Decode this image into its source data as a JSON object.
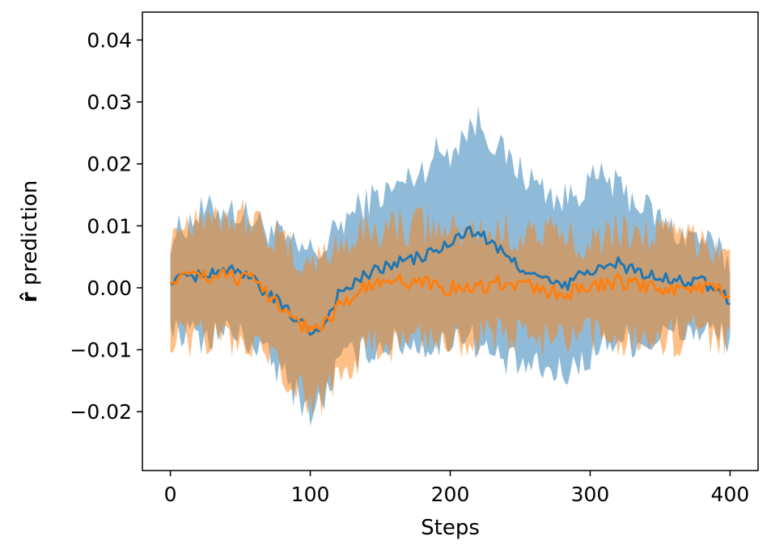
{
  "chart_data": {
    "type": "line",
    "title": "",
    "xlabel": "Steps",
    "ylabel_symbol": "r̂",
    "ylabel_text": " prediction",
    "xlim": [
      -20,
      420
    ],
    "ylim": [
      -0.0295,
      0.0445
    ],
    "x_ticks": [
      0,
      100,
      200,
      300,
      400
    ],
    "x_tick_labels": [
      "0",
      "100",
      "200",
      "300",
      "400"
    ],
    "y_ticks": [
      -0.02,
      -0.01,
      0.0,
      0.01,
      0.02,
      0.03,
      0.04
    ],
    "y_tick_labels": [
      "−0.02",
      "−0.01",
      "0.00",
      "0.01",
      "0.02",
      "0.03",
      "0.04"
    ],
    "grid": false,
    "legend": "none",
    "series": [
      {
        "color": "#1f77b4",
        "band_opacity": 0.5,
        "x": [
          0,
          20,
          40,
          60,
          80,
          90,
          100,
          110,
          120,
          140,
          160,
          180,
          190,
          200,
          210,
          220,
          230,
          240,
          260,
          280,
          300,
          310,
          320,
          340,
          360,
          380,
          400
        ],
        "mean": [
          0.001,
          0.002,
          0.003,
          0.001,
          -0.003,
          -0.005,
          -0.007,
          -0.006,
          -0.001,
          0.002,
          0.004,
          0.005,
          0.006,
          0.007,
          0.009,
          0.009,
          0.007,
          0.005,
          0.002,
          0.0,
          0.003,
          0.003,
          0.004,
          0.002,
          0.001,
          0.001,
          -0.002
        ],
        "lower": [
          -0.006,
          -0.008,
          -0.007,
          -0.009,
          -0.014,
          -0.017,
          -0.02,
          -0.018,
          -0.012,
          -0.01,
          -0.009,
          -0.009,
          -0.01,
          -0.008,
          -0.007,
          -0.009,
          -0.011,
          -0.012,
          -0.013,
          -0.014,
          -0.011,
          -0.009,
          -0.008,
          -0.009,
          -0.007,
          -0.007,
          -0.008
        ],
        "upper": [
          0.008,
          0.012,
          0.013,
          0.011,
          0.008,
          0.006,
          0.006,
          0.006,
          0.01,
          0.014,
          0.016,
          0.019,
          0.022,
          0.022,
          0.025,
          0.027,
          0.024,
          0.021,
          0.017,
          0.014,
          0.017,
          0.018,
          0.016,
          0.013,
          0.009,
          0.008,
          0.004
        ]
      },
      {
        "color": "#ff7f0e",
        "band_opacity": 0.5,
        "x": [
          0,
          20,
          40,
          60,
          80,
          90,
          100,
          110,
          120,
          140,
          160,
          180,
          200,
          220,
          240,
          260,
          280,
          300,
          320,
          340,
          360,
          380,
          400
        ],
        "mean": [
          0.001,
          0.002,
          0.002,
          0.001,
          -0.003,
          -0.005,
          -0.007,
          -0.006,
          -0.003,
          0.0,
          0.001,
          0.001,
          0.0,
          0.0,
          0.001,
          0.0,
          -0.001,
          0.0,
          0.001,
          0.0,
          0.0,
          0.0,
          -0.001
        ],
        "lower": [
          -0.008,
          -0.008,
          -0.008,
          -0.01,
          -0.014,
          -0.016,
          -0.019,
          -0.017,
          -0.013,
          -0.01,
          -0.009,
          -0.008,
          -0.008,
          -0.008,
          -0.008,
          -0.008,
          -0.009,
          -0.008,
          -0.008,
          -0.008,
          -0.008,
          -0.007,
          -0.008
        ],
        "upper": [
          0.009,
          0.012,
          0.012,
          0.011,
          0.007,
          0.005,
          0.004,
          0.005,
          0.007,
          0.009,
          0.01,
          0.01,
          0.009,
          0.009,
          0.009,
          0.009,
          0.008,
          0.008,
          0.009,
          0.009,
          0.008,
          0.008,
          0.006
        ]
      }
    ]
  }
}
